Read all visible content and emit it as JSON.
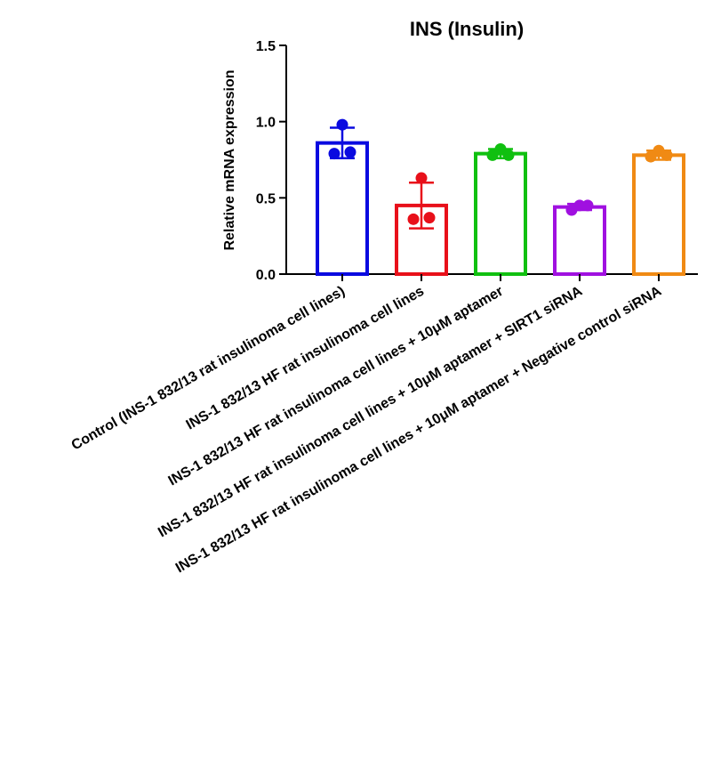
{
  "chart_data": {
    "type": "bar",
    "title": "INS (Insulin)",
    "ylabel": "Relative mRNA expression",
    "xlabel": "",
    "ylim": [
      0,
      1.5
    ],
    "yticks": [
      "0.0",
      "0.5",
      "1.0",
      "1.5"
    ],
    "categories": [
      "Control (INS-1 832/13 rat insulinoma cell lines)",
      "INS-1 832/13 HF rat insulinoma cell lines",
      "INS-1 832/13 HF rat insulinoma cell lines + 10μM aptamer",
      "INS-1 832/13 HF rat insulinoma cell lines + 10μM aptamer + SIRT1 siRNA",
      "INS-1 832/13 HF rat insulinoma cell lines + 10μM aptamer + Negative control siRNA"
    ],
    "values": [
      0.86,
      0.45,
      0.79,
      0.44,
      0.78
    ],
    "error_sd": [
      0.1,
      0.15,
      0.03,
      0.02,
      0.03
    ],
    "points": [
      [
        0.98,
        0.79,
        0.8
      ],
      [
        0.63,
        0.36,
        0.37
      ],
      [
        0.82,
        0.78,
        0.78
      ],
      [
        0.45,
        0.42,
        0.45
      ],
      [
        0.81,
        0.77,
        0.78
      ]
    ],
    "colors": [
      "#0a0ae0",
      "#e8101a",
      "#10c010",
      "#a010e0",
      "#f08a14"
    ],
    "grid": false,
    "legend": "none"
  }
}
